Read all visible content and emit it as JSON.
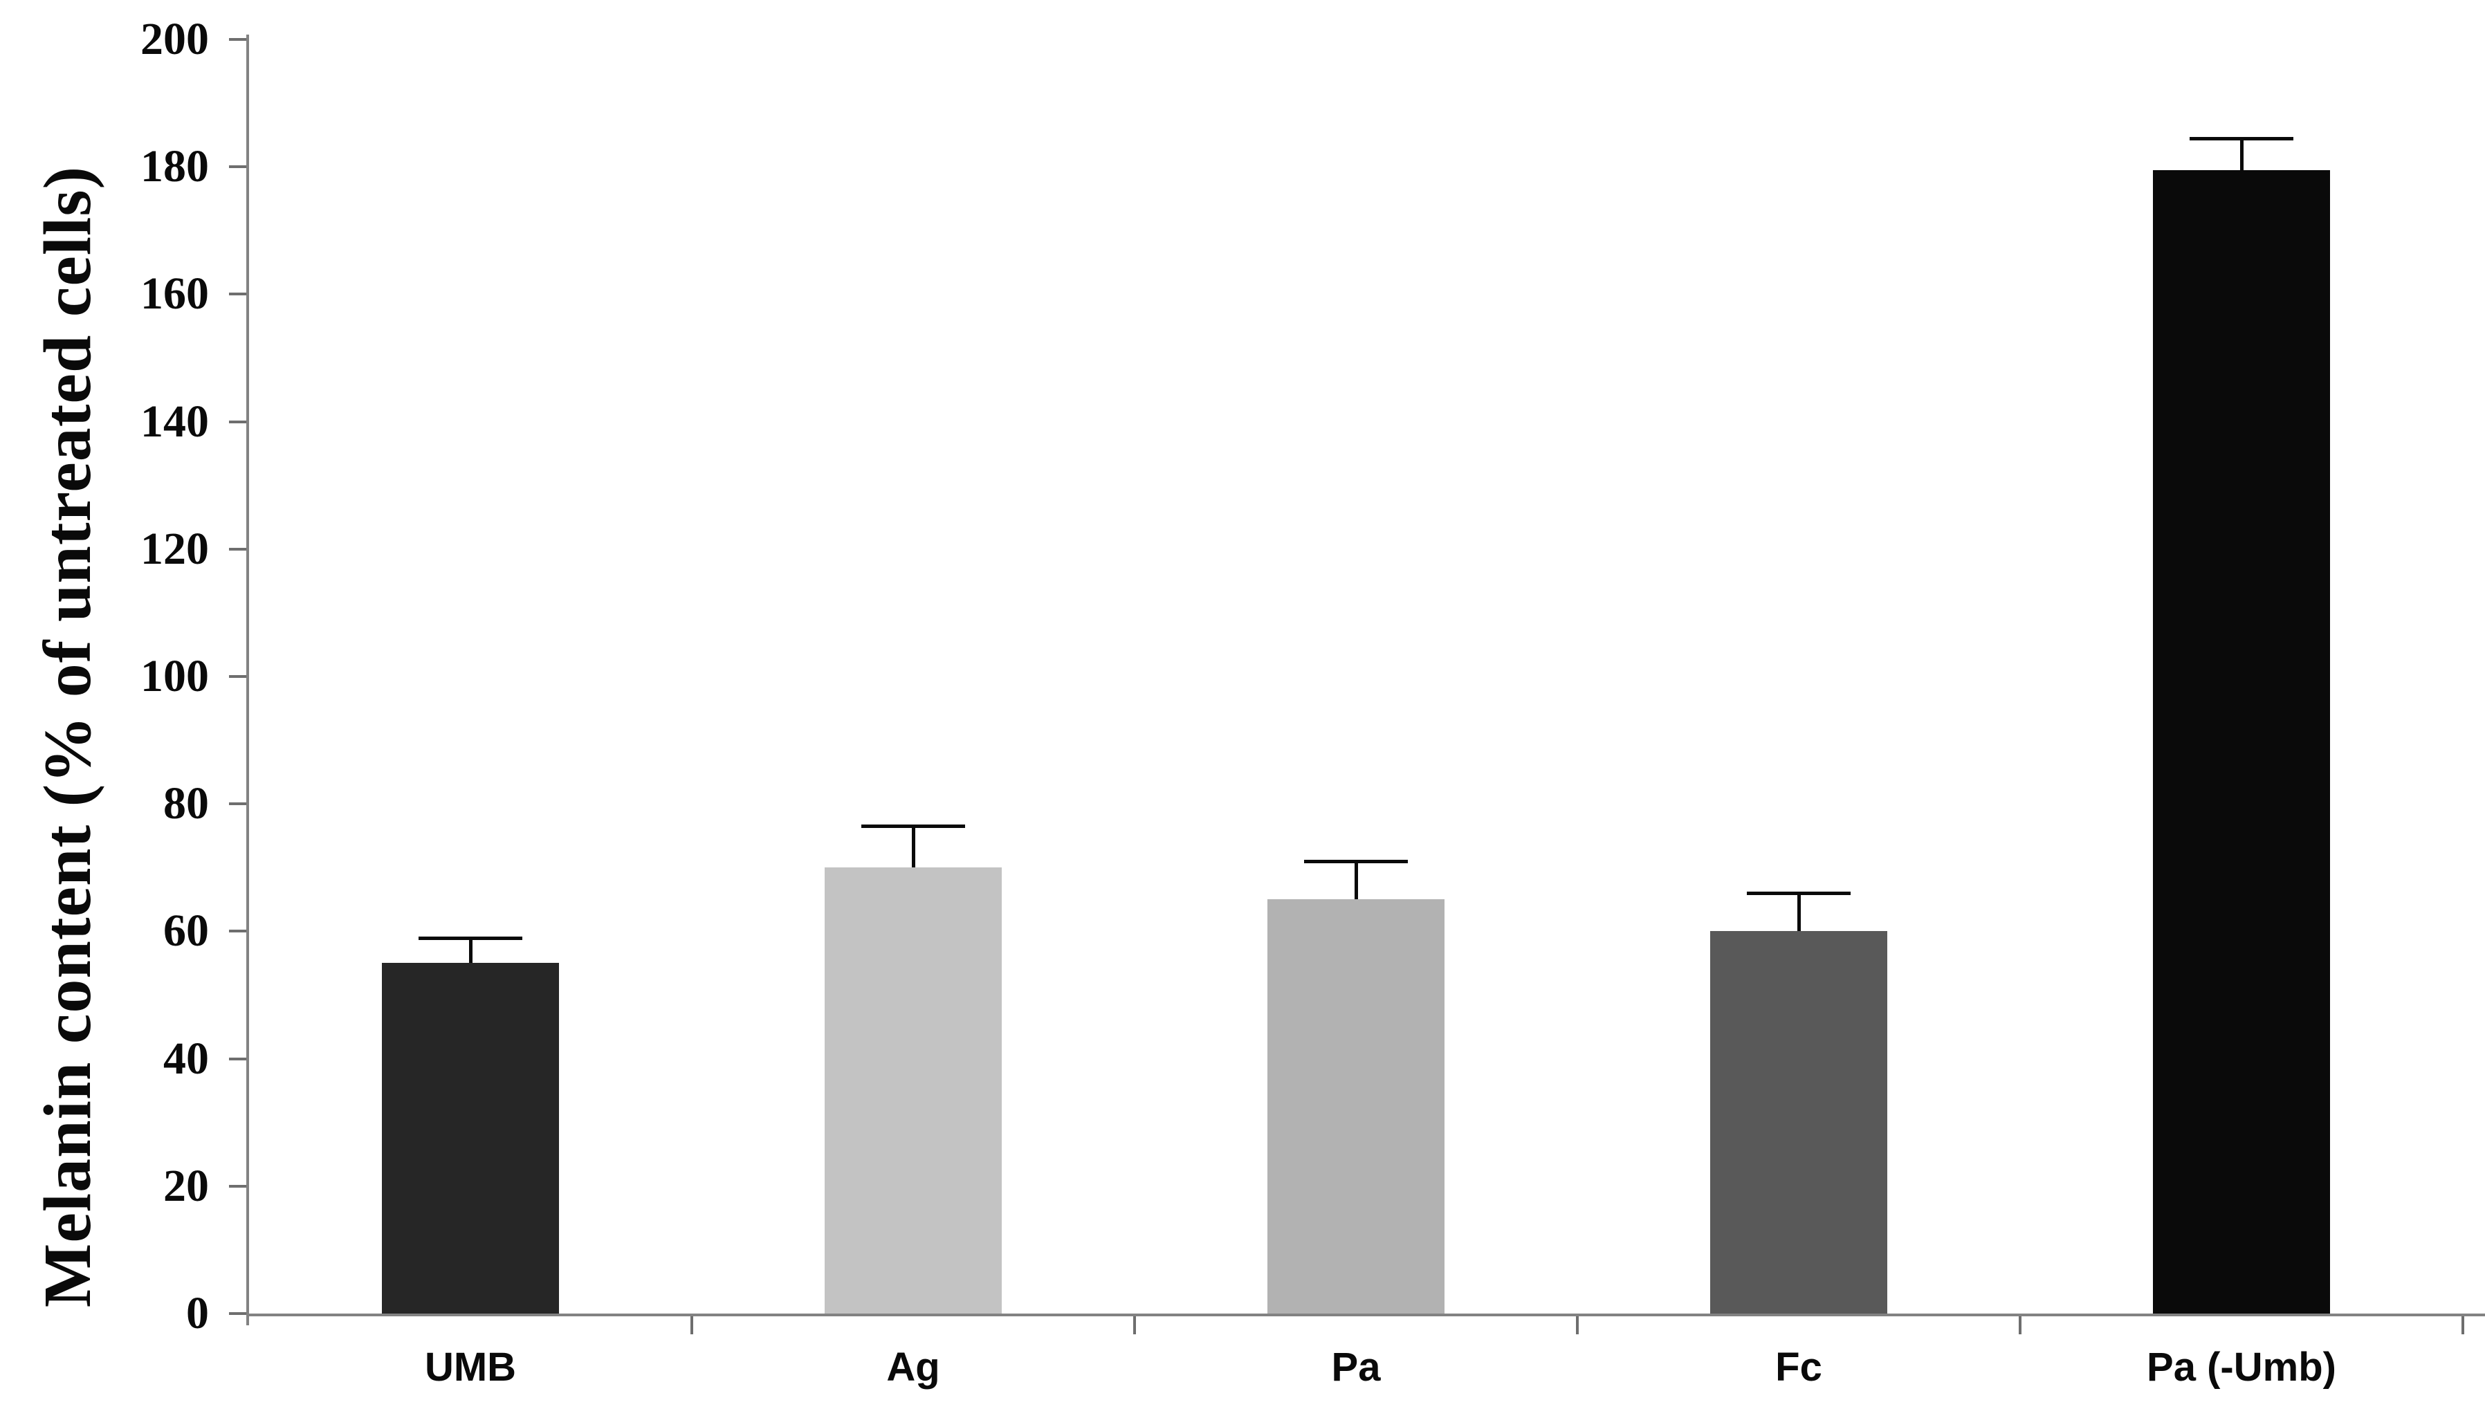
{
  "figure": {
    "background_color": "#ffffff",
    "axis_line_color": "#828282",
    "tick_mark_color": "#6e6e6e",
    "text_color": "#0a0a0a",
    "error_bar_color": "#0a0a0a"
  },
  "chart_data": {
    "type": "bar",
    "title": "",
    "xlabel": "",
    "ylabel": "Melanin content (% of untreated cells)",
    "categories": [
      "UMB",
      "Ag",
      "Pa",
      "Fc",
      "Pa (-Umb)"
    ],
    "values": [
      55,
      70,
      65,
      60,
      179.5
    ],
    "errors_plus": [
      4,
      6.5,
      6,
      6,
      5
    ],
    "bar_colors": [
      "#262626",
      "#c3c3c3",
      "#b2b2b2",
      "#595959",
      "#0a0a0a"
    ],
    "ylim": [
      0,
      200
    ],
    "yticks": [
      0,
      20,
      40,
      60,
      80,
      100,
      120,
      140,
      160,
      180,
      200
    ],
    "ytick_labels": [
      "0",
      "20",
      "40",
      "60",
      "80",
      "100",
      "120",
      "140",
      "160",
      "180",
      "200"
    ],
    "grid": false,
    "legend": "none",
    "error_bars": "upper only"
  }
}
